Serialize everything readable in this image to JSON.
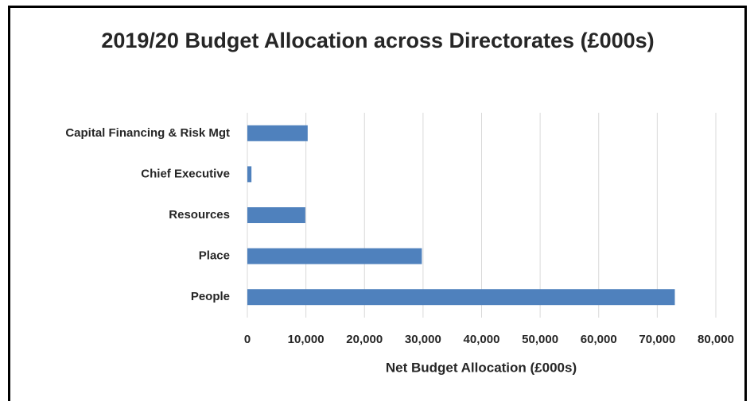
{
  "chart_data": {
    "type": "bar",
    "orientation": "horizontal",
    "title": "2019/20 Budget Allocation across Directorates (£000s)",
    "xlabel": "Net Budget Allocation (£000s)",
    "categories": [
      "Capital Financing & Risk Mgt",
      "Chief Executive",
      "Resources",
      "Place",
      "People"
    ],
    "values": [
      10300,
      700,
      9900,
      29800,
      73000
    ],
    "color": "#4f81bd",
    "xlim": [
      0,
      80000
    ],
    "xticks": [
      0,
      {
        "value": 10000,
        "label": "10,000"
      },
      {
        "value": 20000,
        "label": "20,000"
      },
      {
        "value": 30000,
        "label": "30,000"
      },
      {
        "value": 40000,
        "label": "40,000"
      },
      {
        "value": 50000,
        "label": "50,000"
      },
      {
        "value": 60000,
        "label": "60,000"
      },
      {
        "value": 70000,
        "label": "70,000"
      },
      {
        "value": 80000,
        "label": "80,000"
      }
    ],
    "grid": true
  }
}
